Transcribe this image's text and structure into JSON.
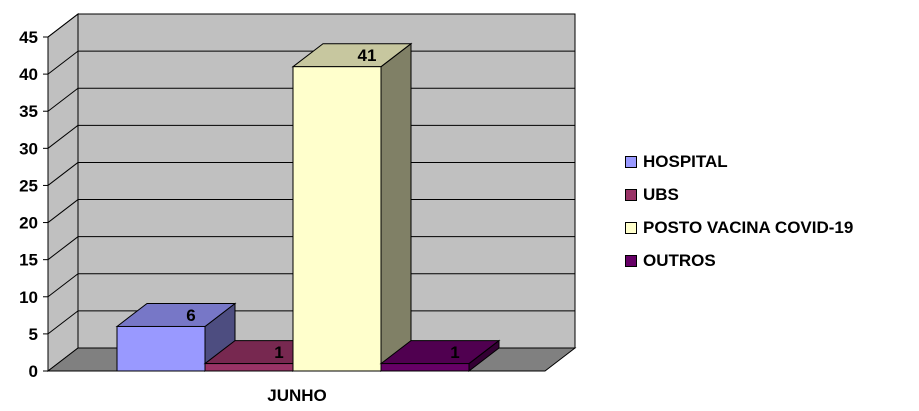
{
  "chart_data": {
    "type": "bar",
    "categories": [
      "JUNHO"
    ],
    "series": [
      {
        "name": "HOSPITAL",
        "values": [
          6
        ],
        "color": "#9999ff"
      },
      {
        "name": "UBS",
        "values": [
          1
        ],
        "color": "#993366"
      },
      {
        "name": "POSTO VACINA COVID-19",
        "values": [
          41
        ],
        "color": "#ffffcc"
      },
      {
        "name": "OUTROS",
        "values": [
          1
        ],
        "color": "#660066"
      }
    ],
    "yticks": [
      "0",
      "5",
      "10",
      "15",
      "20",
      "25",
      "30",
      "35",
      "40",
      "45"
    ],
    "ylim": [
      0,
      45
    ],
    "grid": true,
    "legend_position": "right",
    "style": "3d-column"
  }
}
